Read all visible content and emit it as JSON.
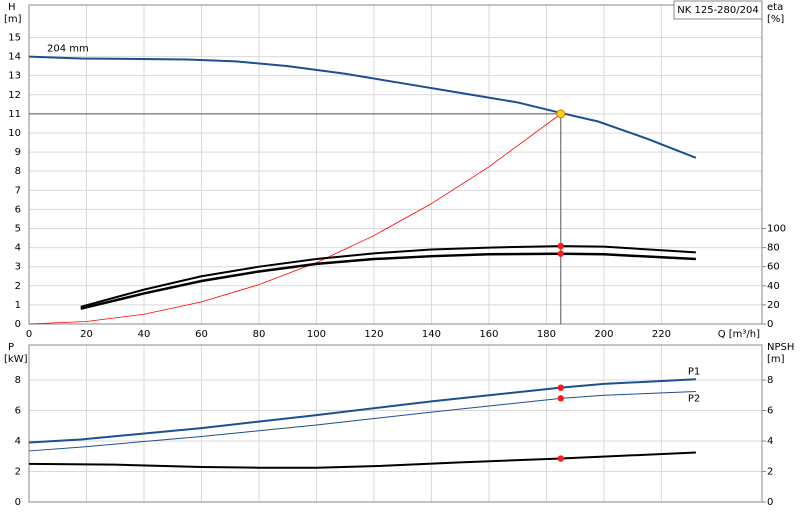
{
  "chart_data": [
    {
      "type": "line",
      "title": "NK 125-280/204",
      "ylabel": "H",
      "yunit": "[m]",
      "y2label": "eta",
      "y2unit": "[%]",
      "xlabel": "Q [m³/h]",
      "xlim": [
        0,
        255
      ],
      "xticks": [
        0,
        20,
        40,
        60,
        80,
        100,
        120,
        140,
        160,
        180,
        200,
        220
      ],
      "ylim": [
        0,
        16.7
      ],
      "yticks": [
        0,
        1,
        2,
        3,
        4,
        5,
        6,
        7,
        8,
        9,
        10,
        11,
        12,
        13,
        14,
        15
      ],
      "y2lim": [
        0,
        334
      ],
      "y2ticks": [
        0,
        20,
        40,
        60,
        80,
        100
      ],
      "grid": true,
      "operating_point": {
        "x": 185,
        "y": 11
      },
      "series": [
        {
          "name": "204 mm",
          "color": "#1c4f91",
          "x": [
            0,
            18,
            55,
            72,
            90,
            110,
            130,
            150,
            170,
            185,
            198,
            215,
            232
          ],
          "values": [
            14,
            13.9,
            13.85,
            13.75,
            13.5,
            13.1,
            12.6,
            12.1,
            11.6,
            11.05,
            10.6,
            9.7,
            8.7
          ]
        },
        {
          "color": "#ff0000",
          "x": [
            0,
            20,
            40,
            60,
            80,
            100,
            120,
            140,
            160,
            185
          ],
          "values": [
            0,
            0.13,
            0.51,
            1.16,
            2.06,
            3.21,
            4.63,
            6.3,
            8.23,
            11
          ]
        },
        {
          "color": "#000000",
          "axis": "y2",
          "x": [
            18,
            40,
            60,
            80,
            100,
            120,
            140,
            160,
            185,
            200,
            232
          ],
          "values": [
            18,
            36,
            50,
            60,
            68,
            74,
            78,
            80,
            81.6,
            81,
            75
          ]
        },
        {
          "color": "#000000",
          "axis": "y2",
          "x": [
            18,
            40,
            60,
            80,
            100,
            120,
            140,
            160,
            185,
            200,
            232
          ],
          "values": [
            16,
            32,
            45,
            55,
            63,
            68,
            71,
            73,
            73.6,
            73,
            68
          ]
        }
      ]
    },
    {
      "type": "line",
      "ylabel": "P",
      "yunit": "[kW]",
      "y2label": "NPSH",
      "y2unit": "[m]",
      "xlim": [
        0,
        255
      ],
      "xticks": [
        0,
        20,
        40,
        60,
        80,
        100,
        120,
        140,
        160,
        180,
        200,
        220
      ],
      "xtick_labels": false,
      "ylim": [
        0,
        10.3
      ],
      "yticks": [
        0,
        2,
        4,
        6,
        8
      ],
      "y2lim": [
        0,
        10.3
      ],
      "y2ticks": [
        0,
        2,
        4,
        6,
        8
      ],
      "grid": true,
      "operating_point": {
        "x": 185
      },
      "series": [
        {
          "name": "P1",
          "color": "#1c4f91",
          "x": [
            0,
            18,
            60,
            100,
            140,
            185,
            200,
            232
          ],
          "values": [
            3.9,
            4.1,
            4.85,
            5.7,
            6.6,
            7.5,
            7.75,
            8.05
          ]
        },
        {
          "name": "P2",
          "color": "#1c4f91",
          "x": [
            0,
            18,
            60,
            100,
            140,
            185,
            200,
            232
          ],
          "values": [
            3.35,
            3.6,
            4.3,
            5.05,
            5.9,
            6.8,
            7.0,
            7.25
          ]
        },
        {
          "color": "#000000",
          "axis": "y2",
          "x": [
            0,
            30,
            60,
            80,
            100,
            120,
            150,
            185,
            232
          ],
          "values": [
            2.5,
            2.45,
            2.3,
            2.25,
            2.25,
            2.35,
            2.6,
            2.85,
            3.25
          ]
        }
      ]
    }
  ]
}
